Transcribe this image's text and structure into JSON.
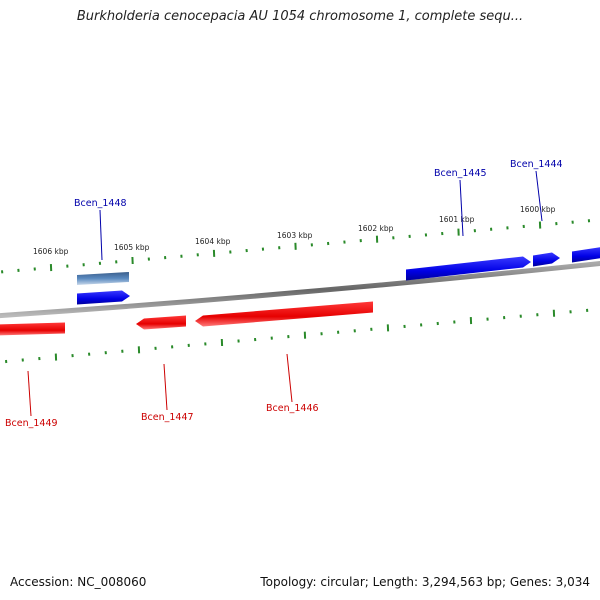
{
  "title": "Burkholderia cenocepacia AU 1054 chromosome 1, complete sequ...",
  "footer": {
    "accession": "Accession: NC_008060",
    "summary": "Topology: circular; Length: 3,294,563 bp; Genes: 3,034"
  },
  "colors": {
    "forward": "#0000ee",
    "reverse": "#ee0000",
    "selected": "#4a7ab0",
    "tick": "#2a8a2a",
    "backbone": "#888888",
    "forward_label": "#0000aa",
    "reverse_label": "#cc0000"
  },
  "ticks": [
    {
      "label": "1606 kbp"
    },
    {
      "label": "1605 kbp"
    },
    {
      "label": "1604 kbp"
    },
    {
      "label": "1603 kbp"
    },
    {
      "label": "1602 kbp"
    },
    {
      "label": "1601 kbp"
    },
    {
      "label": "1600 kbp"
    }
  ],
  "genes": [
    {
      "name": "Bcen_1448",
      "strand": "+",
      "selected": true
    },
    {
      "name": "Bcen_1445",
      "strand": "+",
      "selected": false
    },
    {
      "name": "Bcen_1444",
      "strand": "+",
      "selected": false
    },
    {
      "name": "Bcen_1449",
      "strand": "-",
      "selected": false
    },
    {
      "name": "Bcen_1447",
      "strand": "-",
      "selected": false
    },
    {
      "name": "Bcen_1446",
      "strand": "-",
      "selected": false
    }
  ]
}
